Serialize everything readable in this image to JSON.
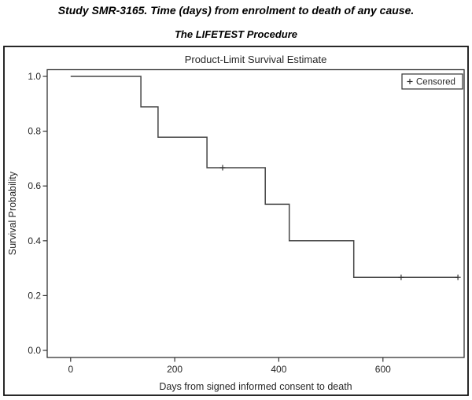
{
  "header": {
    "title1": "Study SMR-3165. Time (days) from enrolment to death of any cause.",
    "title2": "The LIFETEST Procedure"
  },
  "colors": {
    "background": "#ffffff",
    "outer_border": "#111111",
    "plot_frame": "#333333",
    "curve": "#454545",
    "censor_mark": "#333333",
    "text": "#262626"
  },
  "chart_data": {
    "type": "line",
    "subtype": "kaplan-meier-step",
    "title": "Product-Limit Survival Estimate",
    "xlabel": "Days from signed informed consent to death",
    "ylabel": "Survival Probability",
    "grid": false,
    "legend": {
      "marker": "+",
      "label": "Censored",
      "position": "top-right"
    },
    "x_axis": {
      "ticks": [
        0,
        200,
        400,
        600
      ],
      "min": -45,
      "max": 756
    },
    "y_axis": {
      "ticks": [
        1.0,
        0.8,
        0.6,
        0.4,
        0.2,
        0.0
      ],
      "min": -0.026,
      "max": 1.023,
      "tick_decimals": 1
    },
    "series": [
      {
        "name": "Survival",
        "steps": [
          {
            "time": 0,
            "survival": 1.0
          },
          {
            "time": 135,
            "survival": 0.8889
          },
          {
            "time": 168,
            "survival": 0.7778
          },
          {
            "time": 262,
            "survival": 0.6667
          },
          {
            "time": 374,
            "survival": 0.5333
          },
          {
            "time": 420,
            "survival": 0.4
          },
          {
            "time": 544,
            "survival": 0.2667
          }
        ],
        "end_time": 744
      }
    ],
    "censored": [
      {
        "time": 292,
        "survival": 0.6667
      },
      {
        "time": 635,
        "survival": 0.2667
      },
      {
        "time": 744,
        "survival": 0.2667
      }
    ]
  }
}
